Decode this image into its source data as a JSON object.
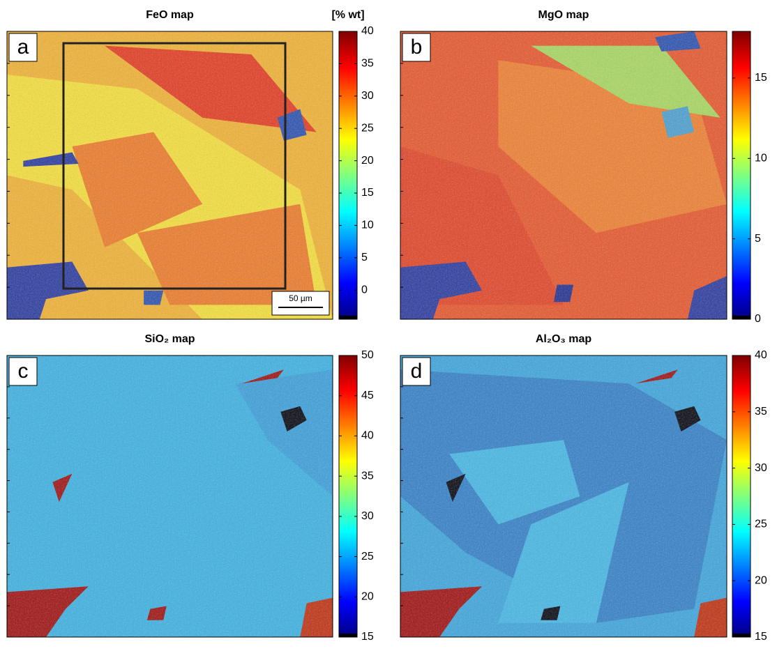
{
  "chart_data": [
    {
      "type": "heatmap",
      "title": "FeO map",
      "panel": "a",
      "colorbar_label": "[% wt]",
      "scale_bar": "50 µm",
      "clim": [
        -4.5,
        40
      ],
      "cticks": [
        0,
        5,
        10,
        15,
        20,
        25,
        30,
        35,
        40
      ],
      "colormap": "jet"
    },
    {
      "type": "heatmap",
      "title": "MgO map",
      "panel": "b",
      "clim": [
        0,
        17.9
      ],
      "cticks": [
        0,
        5,
        10,
        15
      ],
      "colormap": "jet"
    },
    {
      "type": "heatmap",
      "title": "SiO₂ map",
      "panel": "c",
      "clim": [
        15,
        50
      ],
      "cticks": [
        15,
        20,
        25,
        30,
        35,
        40,
        45,
        50
      ],
      "colormap": "jet"
    },
    {
      "type": "heatmap",
      "title": "Al₂O₃ map",
      "panel": "d",
      "clim": [
        15,
        40
      ],
      "cticks": [
        15,
        20,
        25,
        30,
        35,
        40
      ],
      "colormap": "jet"
    }
  ]
}
